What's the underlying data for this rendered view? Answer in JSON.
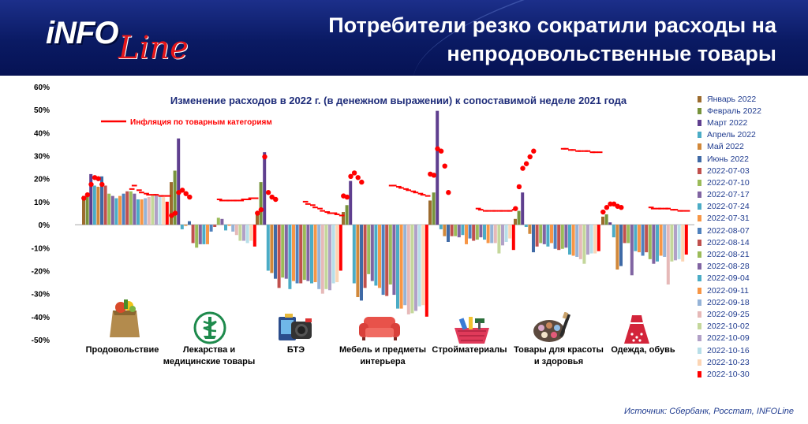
{
  "header": {
    "logo_text": "INFOLine",
    "title_line1": "Потребители резко сократили расходы на",
    "title_line2": "непродовольственные товары"
  },
  "source": "Источник: Сбербанк, Росстат, INFOLine",
  "chart_data": {
    "type": "bar",
    "title": "Изменение расходов в 2022 г. (в денежном выражении) к сопоставимой неделе 2021 года",
    "inflation_legend": "Инфляция по товарным категориям",
    "ylim": [
      -50,
      60
    ],
    "yticks": [
      "60%",
      "50%",
      "40%",
      "30%",
      "20%",
      "10%",
      "0%",
      "-10%",
      "-20%",
      "-30%",
      "-40%",
      "-50%"
    ],
    "categories": [
      "Продовольствие",
      "Лекарства и медицинские товары",
      "БТЭ",
      "Мебель и предметы интерьера",
      "Стройматериалы",
      "Товары для красоты и здоровья",
      "Одежда, обувь"
    ],
    "category_icons": [
      "grocery-bag-icon",
      "medicine-icon",
      "electronics-icon",
      "sofa-icon",
      "tools-basket-icon",
      "cosmetics-icon",
      "dress-icon"
    ],
    "series": [
      {
        "name": "Январь 2022",
        "color": "#9c6b2e",
        "values": [
          12.5,
          18.5,
          4.5,
          5.5,
          10.5,
          2.5,
          3.5
        ]
      },
      {
        "name": "Февраль 2022",
        "color": "#77933c",
        "values": [
          13.5,
          23.5,
          18.5,
          8.5,
          14,
          6,
          4.5
        ]
      },
      {
        "name": "Март 2022",
        "color": "#5f3f8f",
        "values": [
          22,
          37.5,
          31.5,
          19,
          49.5,
          14,
          1
        ]
      },
      {
        "name": "Апрель 2022",
        "color": "#4bacc6",
        "values": [
          17,
          -2,
          -20,
          -25.5,
          -2,
          -1,
          -5.5
        ]
      },
      {
        "name": "Май 2022",
        "color": "#d1883a",
        "values": [
          16.5,
          -0.5,
          -21,
          -31.5,
          -5,
          -4,
          -19.5
        ]
      },
      {
        "name": "Июнь 2022",
        "color": "#3f6aa6",
        "values": [
          21,
          1.5,
          -23.5,
          -33,
          -7.5,
          -12,
          -18
        ]
      },
      {
        "name": "2022-07-03",
        "color": "#c0504d",
        "values": [
          17,
          -8,
          -27.5,
          -27.5,
          -5,
          -9.5,
          -8
        ]
      },
      {
        "name": "2022-07-10",
        "color": "#9bbb59",
        "values": [
          13.5,
          -10,
          -23,
          -21.5,
          -5,
          -8,
          -8
        ]
      },
      {
        "name": "2022-07-17",
        "color": "#8064a2",
        "values": [
          12.5,
          -8.5,
          -23.5,
          -24.5,
          -5.5,
          -8.5,
          -22
        ]
      },
      {
        "name": "2022-07-24",
        "color": "#4bacc6",
        "values": [
          11.5,
          -8.5,
          -28,
          -26.5,
          -4.5,
          -9.5,
          -11.5
        ]
      },
      {
        "name": "2022-07-31",
        "color": "#f79646",
        "values": [
          12.5,
          -8.5,
          -24.5,
          -27.5,
          -8.5,
          -8,
          -12
        ]
      },
      {
        "name": "2022-08-07",
        "color": "#4f81bd",
        "values": [
          13.5,
          -3,
          -25.5,
          -30.5,
          -6,
          -10.5,
          -13.5
        ]
      },
      {
        "name": "2022-08-14",
        "color": "#c0504d",
        "values": [
          14.5,
          -1,
          -25.5,
          -31,
          -7,
          -11,
          -12
        ]
      },
      {
        "name": "2022-08-21",
        "color": "#9bbb59",
        "values": [
          14.5,
          3,
          -24,
          -26,
          -6.5,
          -10.5,
          -15
        ]
      },
      {
        "name": "2022-08-28",
        "color": "#8064a2",
        "values": [
          13.5,
          2.5,
          -24.5,
          -30.5,
          -5.5,
          -10,
          -17
        ]
      },
      {
        "name": "2022-09-04",
        "color": "#4bacc6",
        "values": [
          11,
          -2.5,
          -25.5,
          -36.5,
          -6.5,
          -13,
          -16
        ]
      },
      {
        "name": "2022-09-11",
        "color": "#f79646",
        "values": [
          11,
          -0.5,
          -25,
          -36.5,
          -8,
          -13.5,
          -13.5
        ]
      },
      {
        "name": "2022-09-18",
        "color": "#95b3d7",
        "values": [
          11.5,
          -3,
          -28,
          -35,
          -8,
          -14,
          -14
        ]
      },
      {
        "name": "2022-09-25",
        "color": "#e6b9b8",
        "values": [
          12,
          -4.5,
          -30,
          -39,
          -8,
          -15,
          -26
        ]
      },
      {
        "name": "2022-10-02",
        "color": "#c4d79b",
        "values": [
          13,
          -7,
          -28,
          -38.5,
          -12.5,
          -17,
          -16
        ]
      },
      {
        "name": "2022-10-09",
        "color": "#b1a0c7",
        "values": [
          13,
          -7,
          -28.5,
          -37.5,
          -9,
          -13,
          -15.5
        ]
      },
      {
        "name": "2022-10-16",
        "color": "#b7dee8",
        "values": [
          12.5,
          -8,
          -25.5,
          -35.5,
          -7.5,
          -12.5,
          -15
        ]
      },
      {
        "name": "2022-10-23",
        "color": "#fcd5b4",
        "values": [
          12,
          -7,
          -25,
          -35,
          -6,
          -12.5,
          -16
        ]
      },
      {
        "name": "2022-10-30",
        "color": "#ff0000",
        "values": [
          10,
          -9.5,
          -20,
          -40,
          -11,
          -11.5,
          -13
        ]
      }
    ],
    "inflation": [
      {
        "dots": [
          11.5,
          13,
          17.5,
          20.5,
          20,
          17.5
        ],
        "dashes": [
          15.5,
          17,
          15,
          14,
          13.5,
          13,
          13,
          13,
          12.5,
          12.5,
          12.5
        ]
      },
      {
        "dots": [
          4,
          5,
          14,
          15,
          13.5,
          12
        ],
        "dashes": [
          11,
          10.5,
          10.5,
          10.5,
          10.5,
          10.5,
          10.5,
          11,
          11,
          11.5,
          11.5
        ]
      },
      {
        "dots": [
          5,
          6.5,
          29.5,
          14,
          12,
          11
        ],
        "dashes": [
          10,
          9,
          8.5,
          7.5,
          7,
          6,
          5.5,
          5,
          5,
          4.5,
          4
        ]
      },
      {
        "dots": [
          12.5,
          12,
          21,
          22.5,
          20.5,
          18.5
        ],
        "dashes": [
          17,
          17,
          16.5,
          16,
          15.5,
          15,
          14.5,
          14,
          13.5,
          13,
          12.5
        ]
      },
      {
        "dots": [
          22,
          21.5,
          33,
          32,
          25.5,
          14
        ],
        "dashes": [
          7,
          6.5,
          6,
          6,
          6,
          6,
          6,
          6,
          6,
          6,
          6.5
        ]
      },
      {
        "dots": [
          7,
          16.5,
          24.5,
          26.5,
          29.5,
          32
        ],
        "dashes": [
          33,
          33,
          32.5,
          32.5,
          32,
          32,
          32,
          32,
          31.5,
          31.5,
          31.5
        ]
      },
      {
        "dots": [
          5.5,
          7.5,
          9,
          9,
          8,
          7.5
        ],
        "dashes": [
          7.5,
          7,
          7,
          7,
          7,
          7,
          6.5,
          6.5,
          6,
          6,
          6
        ]
      }
    ]
  }
}
